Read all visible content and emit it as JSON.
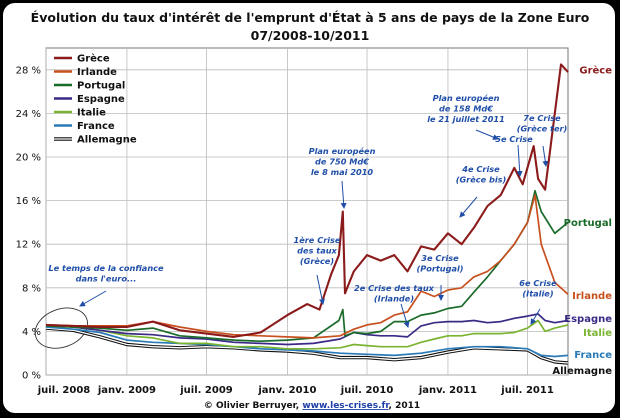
{
  "chart_data": {
    "type": "line",
    "title": "Évolution du taux d'intérêt de l'emprunt d'État à 5 ans de pays de la Zone Euro",
    "subtitle": "07/2008-10/2011",
    "xlabel": "",
    "ylabel": "",
    "ylim": [
      0,
      30
    ],
    "xlim": [
      "2008-07-01",
      "2011-10-01"
    ],
    "y_ticks": [
      "0 %",
      "4 %",
      "8 %",
      "12 %",
      "16 %",
      "20 %",
      "24 %",
      "28 %"
    ],
    "y_tick_values": [
      0,
      4,
      8,
      12,
      16,
      20,
      24,
      28
    ],
    "x_ticks": [
      {
        "label": "juil. 2008",
        "date": "2008-07-01"
      },
      {
        "label": "janv. 2009",
        "date": "2009-01-01"
      },
      {
        "label": "juil. 2009",
        "date": "2009-07-01"
      },
      {
        "label": "janv. 2010",
        "date": "2010-01-01"
      },
      {
        "label": "juil. 2010",
        "date": "2010-07-01"
      },
      {
        "label": "janv. 2011",
        "date": "2011-01-01"
      },
      {
        "label": "juil. 2011",
        "date": "2011-07-01"
      }
    ],
    "grid": true,
    "legend_placement": "top-left",
    "series": [
      {
        "name": "Grèce",
        "color": "#8b1a1a",
        "x": [
          "2008-07-01",
          "2008-09-01",
          "2008-11-01",
          "2009-01-01",
          "2009-03-01",
          "2009-05-01",
          "2009-07-01",
          "2009-09-01",
          "2009-11-01",
          "2010-01-01",
          "2010-02-15",
          "2010-03-15",
          "2010-04-10",
          "2010-04-28",
          "2010-05-07",
          "2010-05-12",
          "2010-06-01",
          "2010-07-01",
          "2010-08-01",
          "2010-09-01",
          "2010-10-01",
          "2010-11-01",
          "2010-12-01",
          "2011-01-01",
          "2011-02-01",
          "2011-03-01",
          "2011-04-01",
          "2011-05-01",
          "2011-06-01",
          "2011-06-20",
          "2011-07-15",
          "2011-07-25",
          "2011-08-10",
          "2011-09-01",
          "2011-09-15",
          "2011-10-01"
        ],
        "y": [
          4.6,
          4.5,
          4.4,
          4.4,
          4.9,
          4.1,
          3.8,
          3.5,
          3.9,
          5.5,
          6.5,
          6.0,
          9.2,
          11.0,
          15.0,
          7.5,
          9.5,
          11.0,
          10.5,
          11.0,
          9.5,
          11.8,
          11.5,
          13.0,
          12.0,
          13.5,
          15.5,
          16.5,
          19.0,
          17.5,
          21.0,
          18.0,
          17.0,
          24.0,
          28.5,
          27.8
        ]
      },
      {
        "name": "Irlande",
        "color": "#c8501e",
        "x": [
          "2008-07-01",
          "2008-09-01",
          "2008-11-01",
          "2009-01-01",
          "2009-03-01",
          "2009-05-01",
          "2009-07-01",
          "2009-09-01",
          "2009-11-01",
          "2010-01-01",
          "2010-03-01",
          "2010-05-01",
          "2010-06-01",
          "2010-07-01",
          "2010-08-01",
          "2010-09-01",
          "2010-10-01",
          "2010-11-01",
          "2010-12-01",
          "2011-01-01",
          "2011-02-01",
          "2011-03-01",
          "2011-04-01",
          "2011-05-01",
          "2011-06-01",
          "2011-07-01",
          "2011-07-18",
          "2011-08-01",
          "2011-09-01",
          "2011-10-01"
        ],
        "y": [
          4.6,
          4.5,
          4.5,
          4.5,
          4.9,
          4.4,
          4.0,
          3.7,
          3.6,
          3.5,
          3.4,
          3.6,
          4.2,
          4.6,
          4.8,
          5.5,
          5.8,
          7.7,
          7.2,
          7.8,
          8.0,
          9.0,
          9.5,
          10.5,
          12.0,
          14.0,
          16.5,
          12.0,
          8.5,
          7.4
        ]
      },
      {
        "name": "Portugal",
        "color": "#1a6b2a",
        "x": [
          "2008-07-01",
          "2008-09-01",
          "2008-11-01",
          "2009-01-01",
          "2009-03-01",
          "2009-05-01",
          "2009-07-01",
          "2009-09-01",
          "2009-11-01",
          "2010-01-01",
          "2010-03-01",
          "2010-04-28",
          "2010-05-07",
          "2010-05-12",
          "2010-06-01",
          "2010-07-01",
          "2010-08-01",
          "2010-09-01",
          "2010-10-01",
          "2010-11-01",
          "2010-12-01",
          "2011-01-01",
          "2011-02-01",
          "2011-03-01",
          "2011-04-01",
          "2011-05-01",
          "2011-06-01",
          "2011-07-01",
          "2011-07-18",
          "2011-08-01",
          "2011-09-01",
          "2011-10-01"
        ],
        "y": [
          4.5,
          4.4,
          4.3,
          4.1,
          4.3,
          3.6,
          3.4,
          3.2,
          3.1,
          3.2,
          3.4,
          5.0,
          6.0,
          3.6,
          3.9,
          3.8,
          4.0,
          4.9,
          4.9,
          5.5,
          5.7,
          6.1,
          6.3,
          7.6,
          9.0,
          10.5,
          12.0,
          14.0,
          16.9,
          15.0,
          13.0,
          14.0
        ]
      },
      {
        "name": "Espagne",
        "color": "#3a2a86",
        "x": [
          "2008-07-01",
          "2008-09-01",
          "2008-11-01",
          "2009-01-01",
          "2009-03-01",
          "2009-05-01",
          "2009-07-01",
          "2009-09-01",
          "2009-11-01",
          "2010-01-01",
          "2010-03-01",
          "2010-05-01",
          "2010-06-01",
          "2010-07-01",
          "2010-08-01",
          "2010-09-01",
          "2010-10-01",
          "2010-11-01",
          "2010-12-01",
          "2011-01-01",
          "2011-02-01",
          "2011-03-01",
          "2011-04-01",
          "2011-05-01",
          "2011-06-01",
          "2011-07-01",
          "2011-07-25",
          "2011-08-10",
          "2011-09-01",
          "2011-10-01"
        ],
        "y": [
          4.6,
          4.4,
          4.1,
          3.8,
          3.7,
          3.4,
          3.3,
          3.0,
          2.9,
          2.8,
          2.9,
          3.3,
          3.9,
          3.7,
          3.6,
          3.6,
          3.5,
          4.5,
          4.8,
          4.9,
          4.9,
          5.0,
          4.8,
          4.9,
          5.2,
          5.4,
          5.6,
          5.0,
          4.8,
          5.0
        ]
      },
      {
        "name": "Italie",
        "color": "#7ab432",
        "x": [
          "2008-07-01",
          "2008-09-01",
          "2008-11-01",
          "2009-01-01",
          "2009-03-01",
          "2009-05-01",
          "2009-07-01",
          "2009-09-01",
          "2009-11-01",
          "2010-01-01",
          "2010-03-01",
          "2010-05-01",
          "2010-06-01",
          "2010-07-01",
          "2010-08-01",
          "2010-09-01",
          "2010-10-01",
          "2010-11-01",
          "2010-12-01",
          "2011-01-01",
          "2011-02-01",
          "2011-03-01",
          "2011-04-01",
          "2011-05-01",
          "2011-06-01",
          "2011-07-01",
          "2011-07-25",
          "2011-08-10",
          "2011-09-01",
          "2011-10-01"
        ],
        "y": [
          4.5,
          4.4,
          4.1,
          3.6,
          3.4,
          2.9,
          2.9,
          2.6,
          2.6,
          2.4,
          2.4,
          2.5,
          2.8,
          2.7,
          2.6,
          2.6,
          2.6,
          3.0,
          3.3,
          3.6,
          3.6,
          3.8,
          3.8,
          3.8,
          3.9,
          4.3,
          5.0,
          4.0,
          4.3,
          4.6
        ]
      },
      {
        "name": "France",
        "color": "#2a7ab8",
        "x": [
          "2008-07-01",
          "2008-09-01",
          "2008-11-01",
          "2009-01-01",
          "2009-03-01",
          "2009-05-01",
          "2009-07-01",
          "2009-09-01",
          "2009-11-01",
          "2010-01-01",
          "2010-03-01",
          "2010-05-01",
          "2010-07-01",
          "2010-09-01",
          "2010-11-01",
          "2011-01-01",
          "2011-03-01",
          "2011-05-01",
          "2011-07-01",
          "2011-08-01",
          "2011-09-01",
          "2011-10-01"
        ],
        "y": [
          4.4,
          4.2,
          3.9,
          3.2,
          3.0,
          2.9,
          2.8,
          2.6,
          2.4,
          2.3,
          2.2,
          2.0,
          1.9,
          1.8,
          2.0,
          2.4,
          2.6,
          2.6,
          2.4,
          1.8,
          1.7,
          1.8
        ]
      },
      {
        "name": "Allemagne",
        "color": "#111111",
        "x": [
          "2008-07-01",
          "2008-09-01",
          "2008-11-01",
          "2009-01-01",
          "2009-03-01",
          "2009-05-01",
          "2009-07-01",
          "2009-09-01",
          "2009-11-01",
          "2010-01-01",
          "2010-03-01",
          "2010-05-01",
          "2010-07-01",
          "2010-09-01",
          "2010-11-01",
          "2011-01-01",
          "2011-03-01",
          "2011-05-01",
          "2011-07-01",
          "2011-08-01",
          "2011-09-01",
          "2011-10-01"
        ],
        "y": [
          4.3,
          4.1,
          3.5,
          2.8,
          2.6,
          2.5,
          2.6,
          2.5,
          2.3,
          2.2,
          2.0,
          1.6,
          1.6,
          1.4,
          1.6,
          2.1,
          2.5,
          2.4,
          2.3,
          1.6,
          1.2,
          1.1
        ]
      }
    ],
    "end_labels": [
      {
        "series": "Grèce",
        "text": "Grèce",
        "date": "2011-10-01",
        "value": 28
      },
      {
        "series": "Portugal",
        "text": "Portugal",
        "date": "2011-10-01",
        "value": 14
      },
      {
        "series": "Irlande",
        "text": "Irlande",
        "date": "2011-10-01",
        "value": 7.3
      },
      {
        "series": "Espagne",
        "text": "Espagne",
        "date": "2011-10-01",
        "value": 5.2
      },
      {
        "series": "Italie",
        "text": "Italie",
        "date": "2011-10-01",
        "value": 3.9
      },
      {
        "series": "France",
        "text": "France",
        "date": "2011-10-01",
        "value": 1.9
      },
      {
        "series": "Allemagne",
        "text": "Allemagne",
        "date": "2011-10-01",
        "value": 0.4
      }
    ],
    "annotations": [
      {
        "lines": [
          "Le temps de la confiance",
          "dans l'euro..."
        ]
      },
      {
        "lines": [
          "Plan européen",
          "de 750 Md€",
          "le 8 mai 2010"
        ]
      },
      {
        "lines": [
          "1ère Crise",
          "des taux",
          "(Grèce)"
        ]
      },
      {
        "lines": [
          "2e Crise des taux",
          "(Irlande)"
        ]
      },
      {
        "lines": [
          "3e Crise",
          "(Portugal)"
        ]
      },
      {
        "lines": [
          "4e Crise",
          "(Grèce bis)"
        ]
      },
      {
        "lines": [
          "Plan européen",
          "de 158 Md€",
          "le 21 juillet 2011"
        ]
      },
      {
        "lines": [
          "5e Crise"
        ]
      },
      {
        "lines": [
          "7e Crise",
          "(Grèce ter)"
        ]
      },
      {
        "lines": [
          "6e Crise",
          "(Italie)"
        ]
      }
    ]
  },
  "credit": {
    "prefix": "© Olivier Berruyer, ",
    "link": "www.les-crises.fr",
    "suffix": ", 2011"
  }
}
